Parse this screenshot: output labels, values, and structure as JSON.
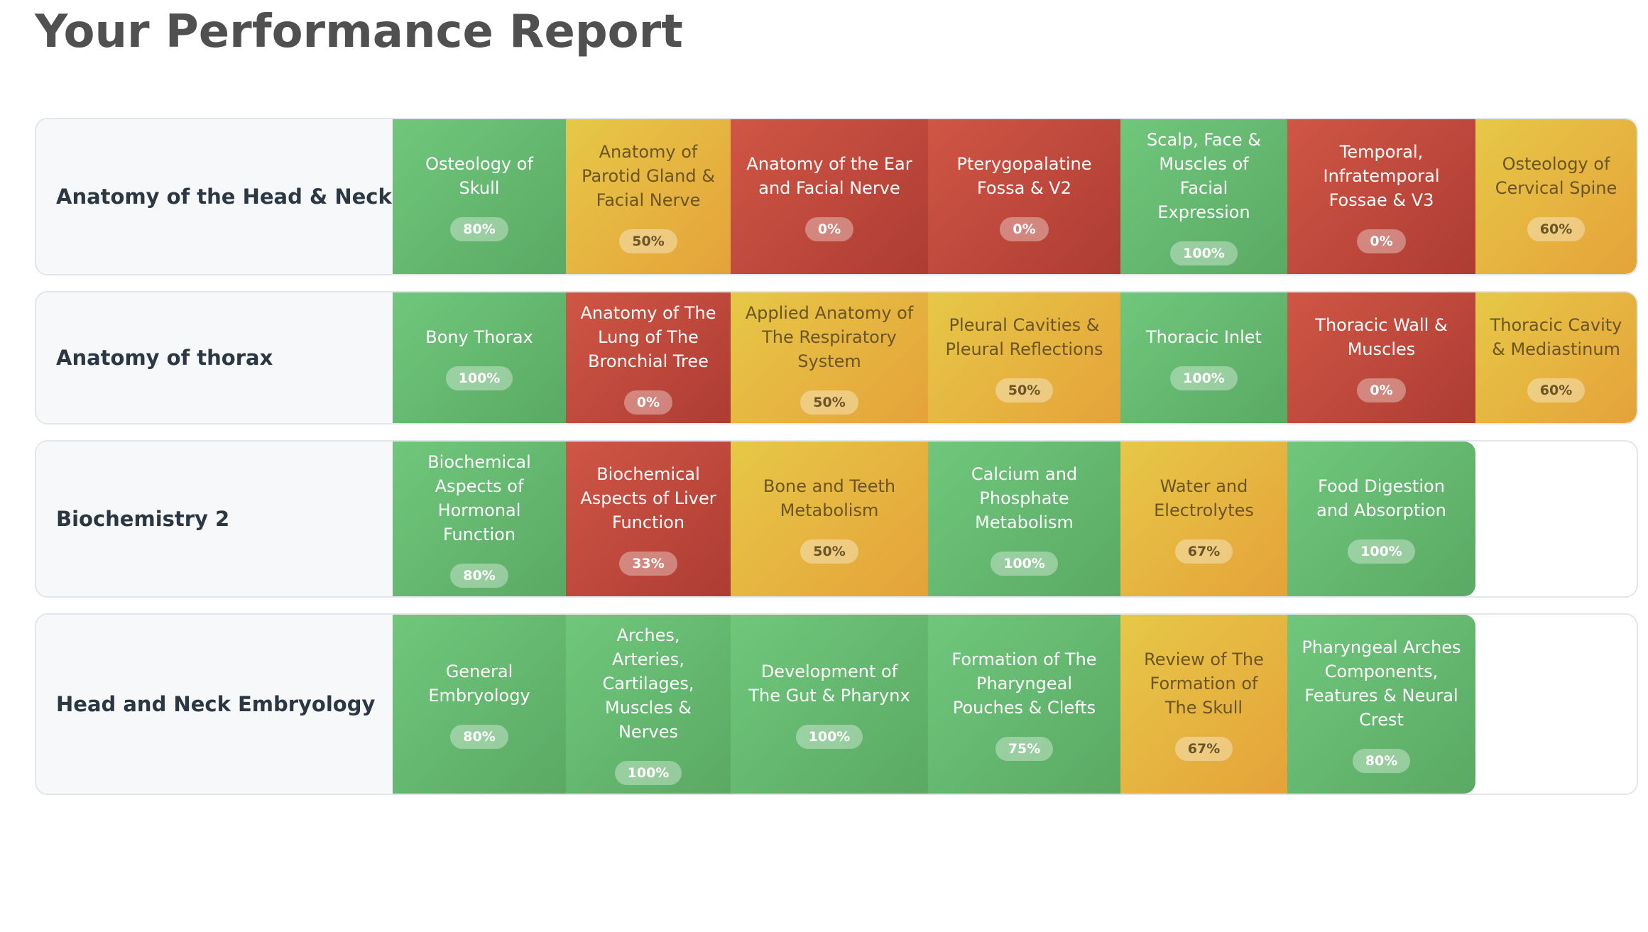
{
  "header": {
    "title": "Your Performance Report"
  },
  "rows": [
    {
      "subject": "Anatomy of the Head & Neck",
      "topics": [
        {
          "name": "Osteology of Skull",
          "score": "80%"
        },
        {
          "name": "Anatomy of Parotid Gland & Facial Nerve",
          "score": "50%"
        },
        {
          "name": "Anatomy of the Ear and Facial Nerve",
          "score": "0%"
        },
        {
          "name": "Pterygopalatine Fossa & V2",
          "score": "0%"
        },
        {
          "name": "Scalp, Face & Muscles of Facial Expression",
          "score": "100%"
        },
        {
          "name": "Temporal, Infratemporal Fossae & V3",
          "score": "0%"
        },
        {
          "name": "Osteology of Cervical Spine",
          "score": "60%"
        }
      ]
    },
    {
      "subject": "Anatomy of thorax",
      "topics": [
        {
          "name": "Bony Thorax",
          "score": "100%"
        },
        {
          "name": "Anatomy of The Lung of The Bronchial Tree",
          "score": "0%"
        },
        {
          "name": "Applied Anatomy of The Respiratory System",
          "score": "50%"
        },
        {
          "name": "Pleural Cavities & Pleural Reflections",
          "score": "50%"
        },
        {
          "name": "Thoracic Inlet",
          "score": "100%"
        },
        {
          "name": "Thoracic Wall & Muscles",
          "score": "0%"
        },
        {
          "name": "Thoracic Cavity & Mediastinum",
          "score": "60%"
        }
      ]
    },
    {
      "subject": "Biochemistry 2",
      "topics": [
        {
          "name": "Biochemical Aspects of Hormonal Function",
          "score": "80%"
        },
        {
          "name": "Biochemical Aspects of Liver Function",
          "score": "33%"
        },
        {
          "name": "Bone and Teeth Metabolism",
          "score": "50%"
        },
        {
          "name": "Calcium and Phosphate Metabolism",
          "score": "100%"
        },
        {
          "name": "Water and Electrolytes",
          "score": "67%"
        },
        {
          "name": "Food Digestion and Absorption",
          "score": "100%"
        }
      ]
    },
    {
      "subject": "Head and Neck Embryology",
      "topics": [
        {
          "name": "General Embryology",
          "score": "80%"
        },
        {
          "name": "Arches, Arteries, Cartilages, Muscles & Nerves",
          "score": "100%"
        },
        {
          "name": "Development of The Gut & Pharynx",
          "score": "100%"
        },
        {
          "name": "Formation of The Pharyngeal Pouches & Clefts",
          "score": "75%"
        },
        {
          "name": "Review of The Formation of The Skull",
          "score": "67%"
        },
        {
          "name": "Pharyngeal Arches Components, Features & Neural Crest",
          "score": "80%"
        }
      ]
    }
  ]
}
